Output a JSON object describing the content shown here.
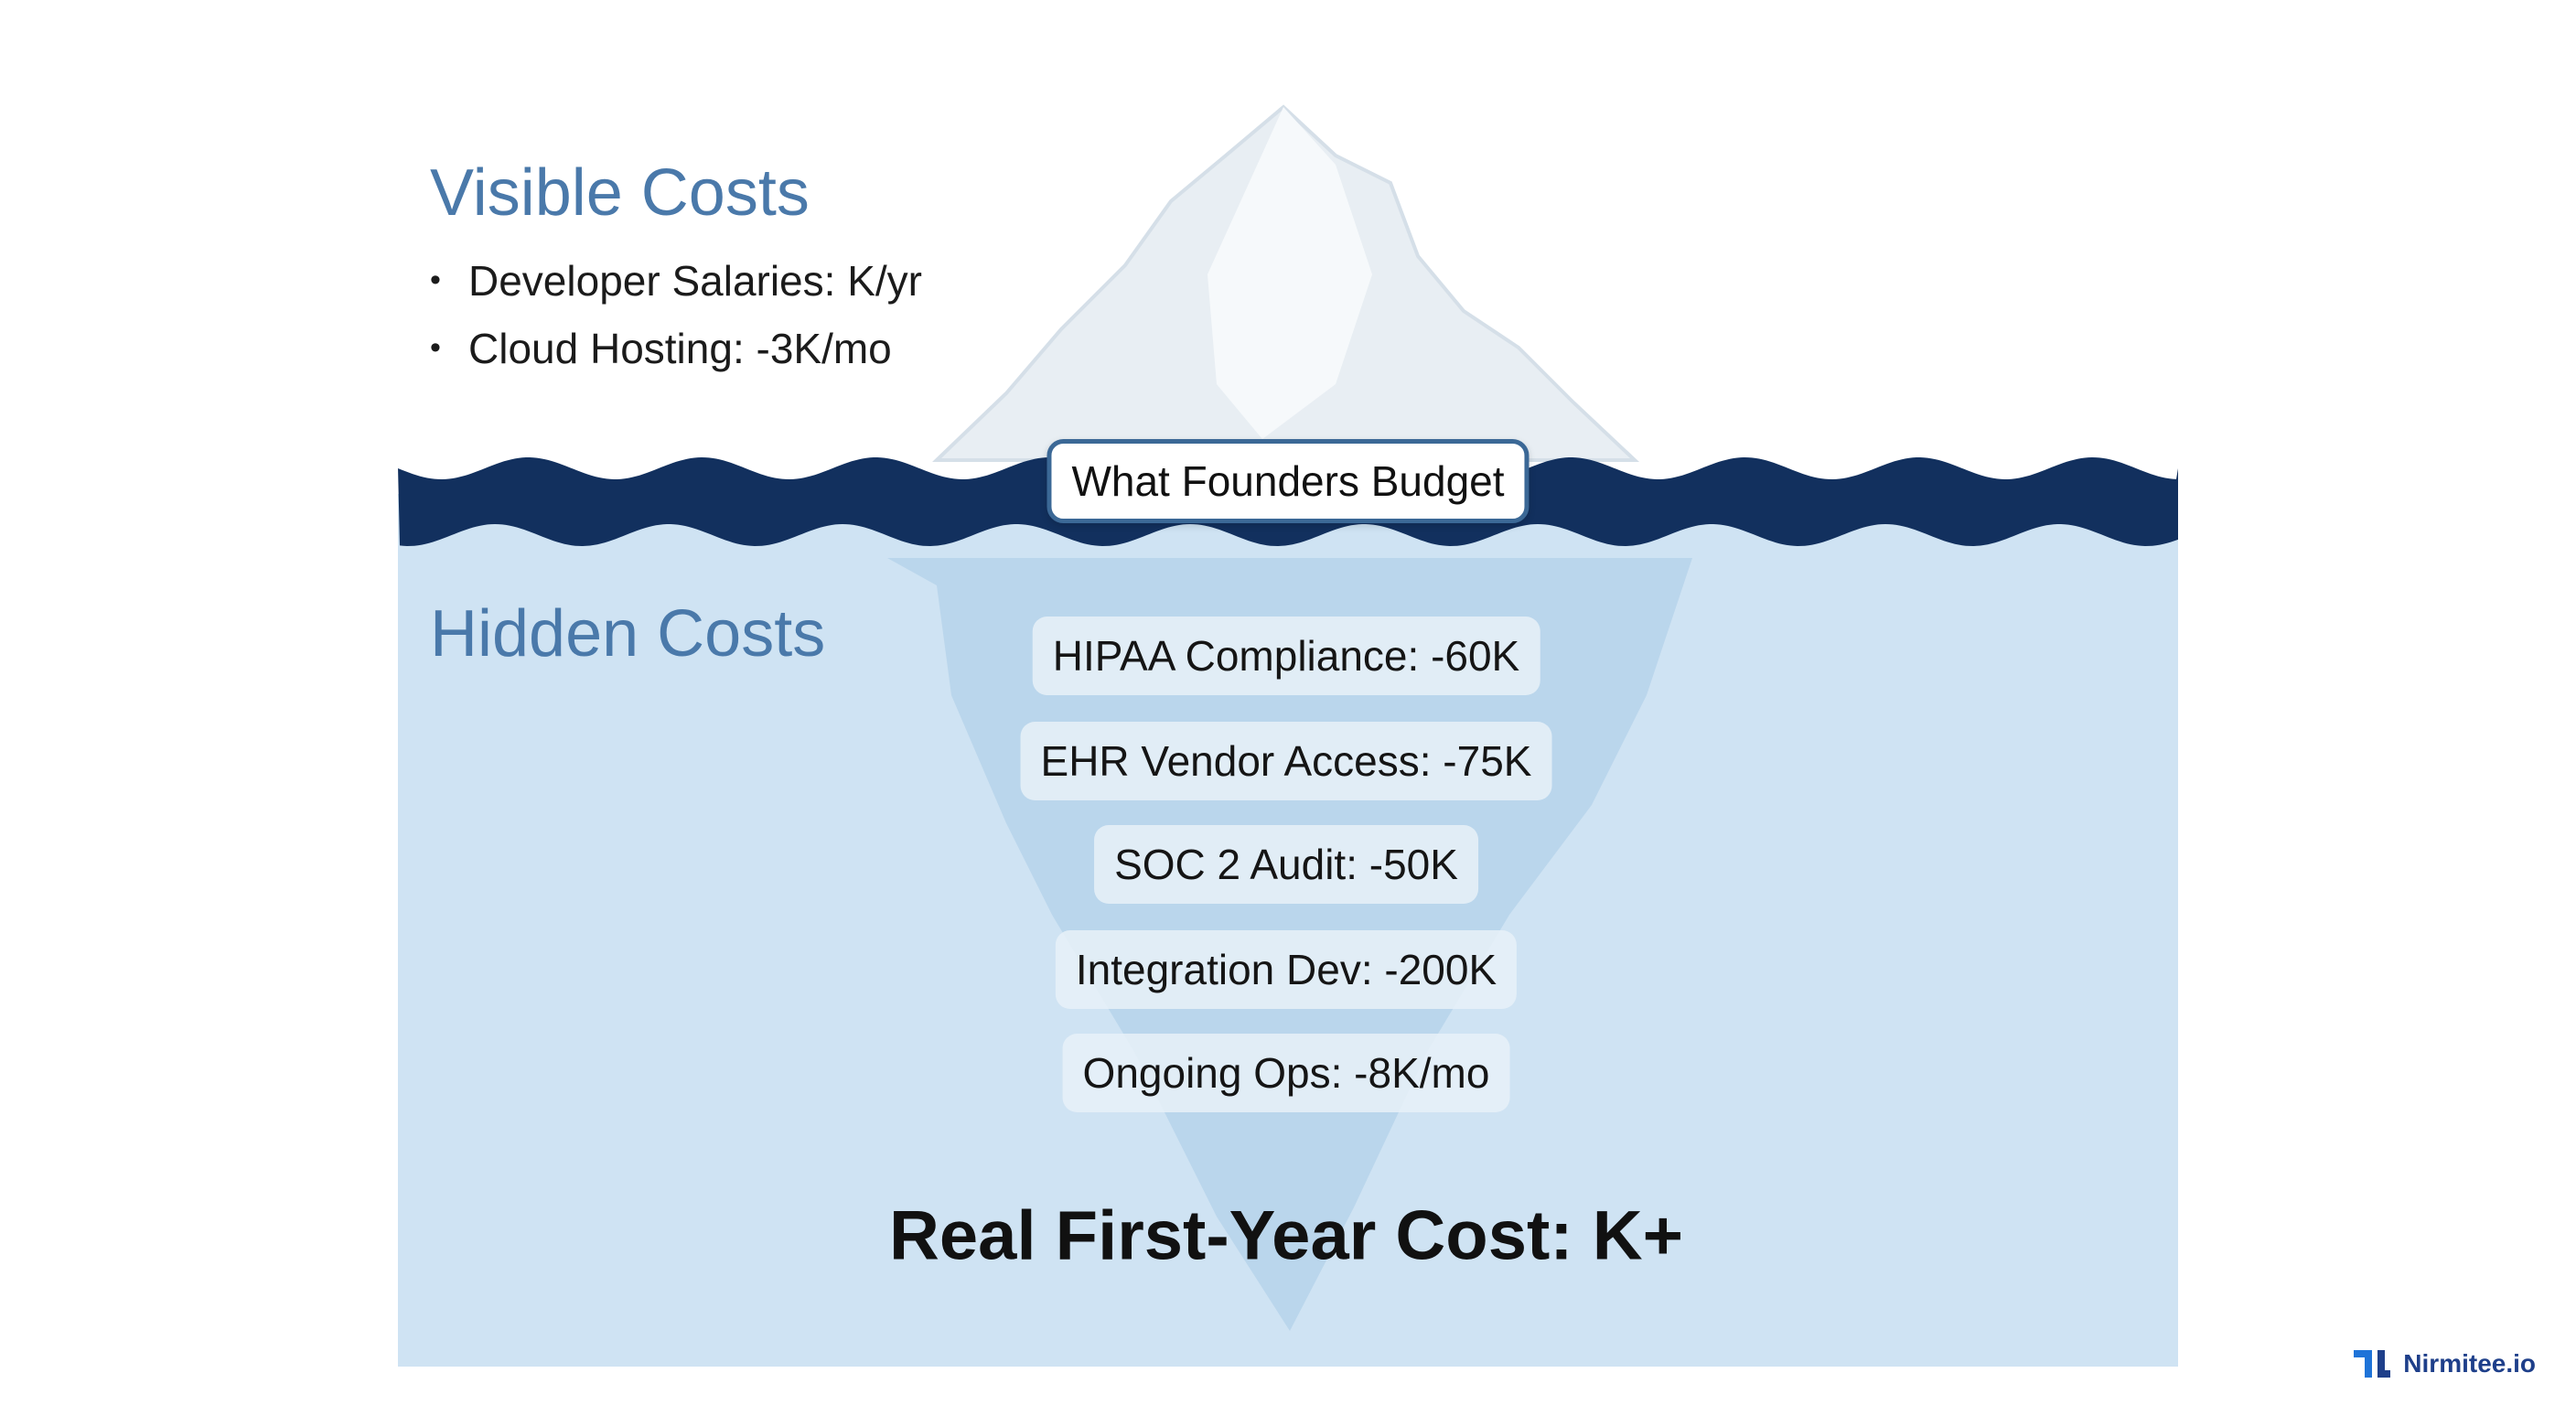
{
  "visible": {
    "title": "Visible Costs",
    "items": [
      "Developer Salaries: K/yr",
      "Cloud Hosting: -3K/mo"
    ]
  },
  "badge": "What Founders Budget",
  "hidden": {
    "title": "Hidden Costs",
    "items": [
      "HIPAA Compliance: -60K",
      "EHR Vendor Access: -75K",
      "SOC 2 Audit: -50K",
      "Integration Dev: -200K",
      "Ongoing Ops: -8K/mo"
    ]
  },
  "total": "Real First-Year Cost: K+",
  "brand": "Nirmitee.io"
}
